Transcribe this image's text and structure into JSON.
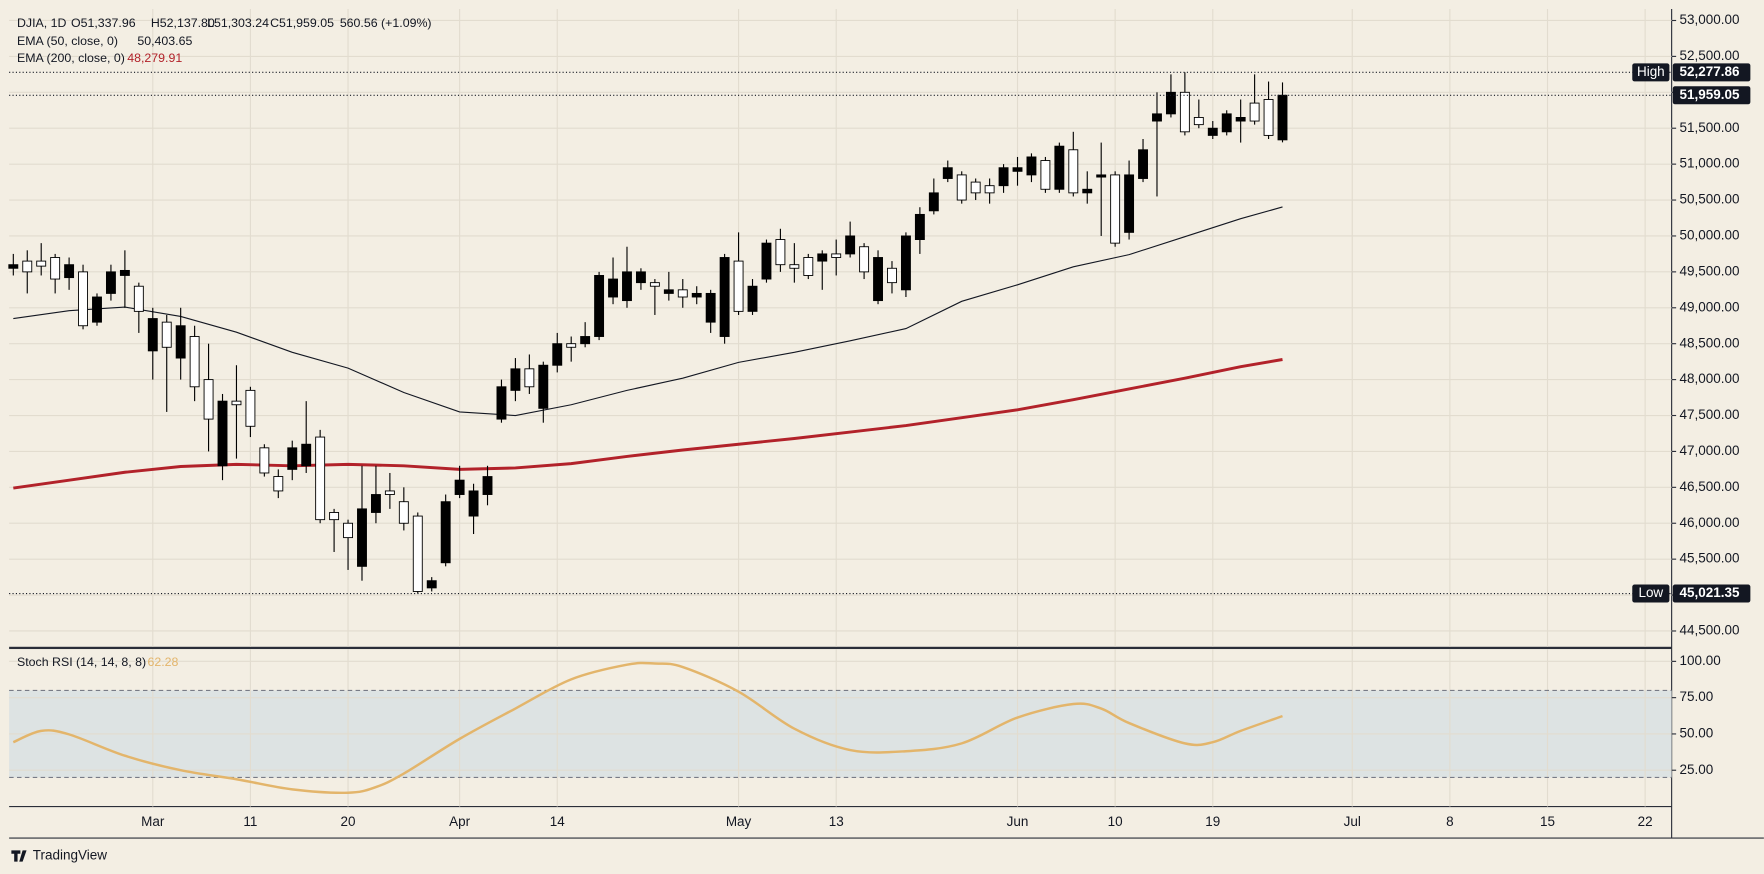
{
  "chart_data": [
    {
      "type": "candlestick",
      "symbol": "DJIA, 1D",
      "ohlc_labels": [
        "O51,337.96",
        "H52,137.80",
        "L51,303.24",
        "C51,959.05",
        "560.56 (+1.09%)"
      ],
      "up_color": "#000000",
      "down_color": "#ffffff",
      "grid": true,
      "open": [
        49550,
        49650,
        49650,
        49700,
        49420,
        49500,
        48800,
        49200,
        49450,
        49300,
        48400,
        48800,
        48300,
        48600,
        48000,
        46800,
        47700,
        47850,
        47050,
        46650,
        46750,
        46800,
        47200,
        46150,
        46000,
        45400,
        46150,
        46450,
        46300,
        46100,
        45100,
        45450,
        46400,
        46100,
        46400,
        47450,
        47850,
        48150,
        47600,
        48200,
        48500,
        48500,
        48600,
        49150,
        49100,
        49350,
        49350,
        49200,
        49250,
        49150,
        48800,
        48600,
        49650,
        48950,
        49400,
        49950,
        49600,
        49700,
        49650,
        49750,
        49750,
        49850,
        49100,
        49550,
        49250,
        49950,
        50350,
        50800,
        50850,
        50750,
        50700,
        50700,
        50900,
        50850,
        51050,
        50650,
        51200,
        50600,
        50820,
        50850,
        50050,
        50800,
        51600,
        51700,
        52000,
        51650,
        51400,
        51450,
        51600,
        51850,
        51900,
        51337.96
      ],
      "high": [
        49750,
        49800,
        49900,
        49750,
        49700,
        49600,
        49200,
        49600,
        49800,
        49350,
        49000,
        48900,
        49000,
        48750,
        48500,
        47800,
        48200,
        47900,
        47100,
        46750,
        47150,
        47700,
        47300,
        46200,
        46050,
        46800,
        46800,
        46700,
        46500,
        46150,
        45250,
        46400,
        46800,
        46550,
        46800,
        48000,
        48300,
        48350,
        48250,
        48650,
        48600,
        48800,
        49500,
        49700,
        49850,
        49550,
        49400,
        49500,
        49400,
        49300,
        49250,
        49750,
        50050,
        49400,
        49950,
        50100,
        49900,
        49750,
        49800,
        49950,
        50200,
        49900,
        49800,
        49650,
        50050,
        50400,
        50800,
        51050,
        50900,
        50800,
        50800,
        51000,
        51100,
        51150,
        51100,
        51300,
        51450,
        50900,
        51300,
        50900,
        51050,
        51350,
        52000,
        52250,
        52277.86,
        51900,
        51600,
        51750,
        51900,
        52250,
        52150,
        52137.8
      ],
      "low": [
        49450,
        49200,
        49450,
        49200,
        49250,
        48700,
        48750,
        49100,
        49000,
        48650,
        48000,
        47550,
        48000,
        47700,
        47000,
        46600,
        46900,
        47200,
        46650,
        46350,
        46600,
        46700,
        46000,
        45600,
        45350,
        45200,
        46000,
        46200,
        45900,
        45021.35,
        45050,
        45400,
        46350,
        45850,
        46250,
        47400,
        47700,
        47800,
        47400,
        48100,
        48250,
        48450,
        48550,
        49050,
        49000,
        49250,
        48900,
        49100,
        49000,
        49050,
        48650,
        48500,
        48900,
        48900,
        49350,
        49500,
        49350,
        49400,
        49250,
        49450,
        49700,
        49400,
        49050,
        49200,
        49150,
        49750,
        50300,
        50750,
        50450,
        50500,
        50450,
        50600,
        50700,
        50750,
        50600,
        50600,
        50550,
        50450,
        50000,
        49850,
        49950,
        50750,
        50550,
        51650,
        51400,
        51500,
        51350,
        51400,
        51300,
        51550,
        51350,
        51303.24
      ],
      "close": [
        49600,
        49500,
        49580,
        49400,
        49600,
        48750,
        49150,
        49500,
        49520,
        48950,
        48850,
        48450,
        48750,
        47900,
        47450,
        47700,
        47650,
        47350,
        46700,
        46450,
        47050,
        47100,
        46050,
        46050,
        45800,
        46200,
        46400,
        46400,
        46000,
        45050,
        45200,
        46300,
        46600,
        46450,
        46650,
        47900,
        48150,
        47900,
        48200,
        48500,
        48450,
        48600,
        49450,
        49400,
        49500,
        49500,
        49300,
        49250,
        49150,
        49200,
        49200,
        49700,
        48950,
        49300,
        49900,
        49600,
        49550,
        49450,
        49750,
        49700,
        50000,
        49500,
        49700,
        49350,
        50000,
        50300,
        50600,
        50950,
        50500,
        50600,
        50600,
        50950,
        50950,
        51100,
        50650,
        51250,
        50600,
        50650,
        50850,
        49900,
        50850,
        51200,
        51700,
        52000,
        51450,
        51550,
        51500,
        51700,
        51650,
        51600,
        51400,
        51959.05
      ],
      "series": [
        {
          "name": "EMA (50, close, 0)",
          "last_label": "50,403.65",
          "color": "#131722",
          "width": 1,
          "x": [
            0,
            4,
            8,
            12,
            16,
            20,
            24,
            28,
            32,
            36,
            40,
            44,
            48,
            52,
            56,
            60,
            64,
            68,
            72,
            76,
            80,
            84,
            88,
            91
          ],
          "values": [
            48850,
            48960,
            49010,
            48880,
            48660,
            48380,
            48160,
            47820,
            47550,
            47500,
            47650,
            47850,
            48020,
            48240,
            48380,
            48540,
            48710,
            49090,
            49320,
            49570,
            49740,
            49990,
            50240,
            50403.65
          ]
        },
        {
          "name": "EMA (200, close, 0)",
          "last_label": "48,279.91",
          "color": "#b2222a",
          "width": 2.6,
          "x": [
            0,
            4,
            8,
            12,
            16,
            20,
            24,
            28,
            32,
            36,
            40,
            44,
            48,
            52,
            56,
            60,
            64,
            68,
            72,
            76,
            80,
            84,
            88,
            91
          ],
          "values": [
            46490,
            46600,
            46710,
            46790,
            46820,
            46800,
            46820,
            46800,
            46750,
            46770,
            46830,
            46930,
            47020,
            47100,
            47180,
            47270,
            47360,
            47470,
            47580,
            47720,
            47870,
            48020,
            48180,
            48279.91
          ]
        }
      ],
      "price_labels": [
        {
          "label": "High",
          "value": 52277.86,
          "value_label": "52,277.86"
        },
        {
          "value": 51959.05,
          "value_label": "51,959.05"
        },
        {
          "label": "Low",
          "value": 45021.35,
          "value_label": "45,021.35"
        }
      ],
      "xlim": [
        -0.3,
        118.9
      ],
      "xticks": [
        {
          "value": 10,
          "label": "Mar"
        },
        {
          "value": 17,
          "label": "11"
        },
        {
          "value": 24,
          "label": "20"
        },
        {
          "value": 32,
          "label": "Apr"
        },
        {
          "value": 39,
          "label": "14"
        },
        {
          "value": 52,
          "label": "May"
        },
        {
          "value": 59,
          "label": "13"
        },
        {
          "value": 72,
          "label": "Jun"
        },
        {
          "value": 79,
          "label": "10"
        },
        {
          "value": 86,
          "label": "19"
        },
        {
          "value": 96,
          "label": "Jul"
        },
        {
          "value": 103,
          "label": "8"
        },
        {
          "value": 110,
          "label": "15"
        },
        {
          "value": 117,
          "label": "22"
        }
      ],
      "ylim": [
        44280,
        53160
      ],
      "yticks": [
        {
          "value": 44500,
          "label": "44,500.00"
        },
        {
          "value": 45000,
          "label": "45,000.00"
        },
        {
          "value": 45500,
          "label": "45,500.00"
        },
        {
          "value": 46000,
          "label": "46,000.00"
        },
        {
          "value": 46500,
          "label": "46,500.00"
        },
        {
          "value": 47000,
          "label": "47,000.00"
        },
        {
          "value": 47500,
          "label": "47,500.00"
        },
        {
          "value": 48000,
          "label": "48,000.00"
        },
        {
          "value": 48500,
          "label": "48,500.00"
        },
        {
          "value": 49000,
          "label": "49,000.00"
        },
        {
          "value": 49500,
          "label": "49,500.00"
        },
        {
          "value": 50000,
          "label": "50,000.00"
        },
        {
          "value": 50500,
          "label": "50,500.00"
        },
        {
          "value": 51000,
          "label": "51,000.00"
        },
        {
          "value": 51500,
          "label": "51,500.00"
        },
        {
          "value": 52000,
          "label": "52,000.00"
        },
        {
          "value": 52500,
          "label": "52,500.00"
        },
        {
          "value": 53000,
          "label": "53,000.00"
        }
      ]
    },
    {
      "type": "line",
      "grid": true,
      "series": [
        {
          "name": "Stoch RSI (14, 14, 8, 8)",
          "last_label": "62.28",
          "color": "#e3b56b",
          "width": 2.2,
          "x": [
            0,
            2,
            4,
            8,
            12,
            16,
            20,
            24,
            26,
            28,
            32,
            36,
            40,
            44,
            46,
            48,
            52,
            56,
            60,
            64,
            68,
            72,
            76,
            78,
            80,
            84,
            86,
            88,
            91
          ],
          "values": [
            44.3,
            52.1,
            49.7,
            35.0,
            25.0,
            18.8,
            11.8,
            9.5,
            13.4,
            22.7,
            46.6,
            67.5,
            87.6,
            97.7,
            98.5,
            96.1,
            79.1,
            53.6,
            38.9,
            38.1,
            43.5,
            61.3,
            70.6,
            67.5,
            57.5,
            43.5,
            44.3,
            52.1,
            62.28
          ]
        }
      ],
      "bands": [
        20,
        80
      ],
      "band_color": "#dde3e3",
      "ylim": [
        0,
        108.5
      ],
      "yticks": [
        {
          "value": 25,
          "label": "25.00"
        },
        {
          "value": 50,
          "label": "50.00"
        },
        {
          "value": 75,
          "label": "75.00"
        },
        {
          "value": 100,
          "label": "100.00"
        }
      ]
    }
  ],
  "brand": "TradingView"
}
